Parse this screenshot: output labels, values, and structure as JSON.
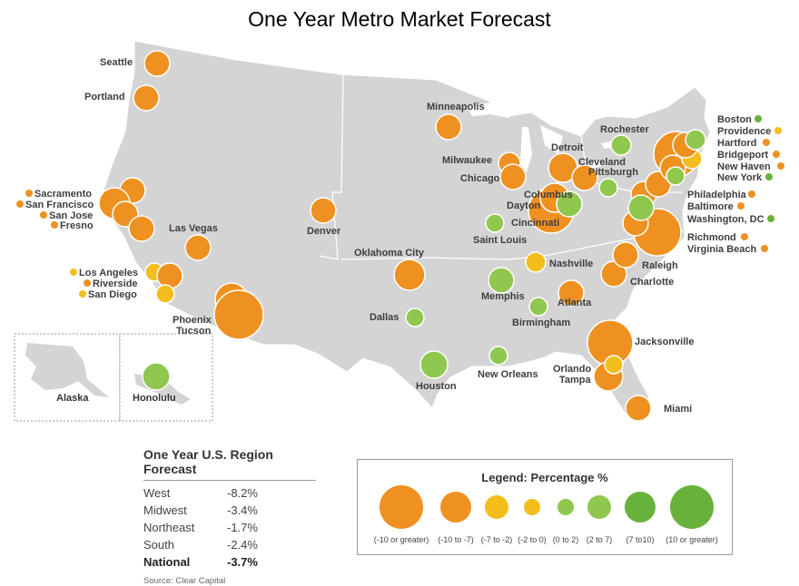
{
  "title": "One Year Metro Market Forecast",
  "colors": {
    "land": "#d4d4d4",
    "orange": "#ef9120",
    "yellow": "#f3be1c",
    "light_green": "#8fc74f",
    "green": "#68b23b"
  },
  "insets": {
    "alaska": "Alaska",
    "hawaii": "Honolulu"
  },
  "metros": [
    {
      "name": "Seattle",
      "category": "-10 to -7"
    },
    {
      "name": "Portland",
      "category": "-10 to -7"
    },
    {
      "name": "Sacramento",
      "category": "-10 to -7"
    },
    {
      "name": "San Francisco",
      "category": "-10 or greater"
    },
    {
      "name": "San Jose",
      "category": "-10 to -7"
    },
    {
      "name": "Fresno",
      "category": "-10 to -7"
    },
    {
      "name": "Las Vegas",
      "category": "-10 to -7"
    },
    {
      "name": "Los Angeles",
      "category": "-7 to -2"
    },
    {
      "name": "Riverside",
      "category": "-10 to -7"
    },
    {
      "name": "San Diego",
      "category": "-7 to -2"
    },
    {
      "name": "Phoenix",
      "category": "-10 or greater"
    },
    {
      "name": "Tucson",
      "category": "-10 or greater"
    },
    {
      "name": "Denver",
      "category": "-10 to -7"
    },
    {
      "name": "Minneapolis",
      "category": "-10 to -7"
    },
    {
      "name": "Oklahoma City",
      "category": "-10 to -7"
    },
    {
      "name": "Dallas",
      "category": "0 to 2"
    },
    {
      "name": "Houston",
      "category": "2 to 7"
    },
    {
      "name": "Milwaukee",
      "category": "-10 to -7"
    },
    {
      "name": "Chicago",
      "category": "-10 to -7"
    },
    {
      "name": "Detroit",
      "category": "-10 to -7"
    },
    {
      "name": "Cleveland",
      "category": "-10 to -7"
    },
    {
      "name": "Columbus",
      "category": "2 to 7"
    },
    {
      "name": "Dayton",
      "category": "-10 or greater"
    },
    {
      "name": "Cincinnati",
      "category": "-10 or greater"
    },
    {
      "name": "Pittsburgh",
      "category": "0 to 2"
    },
    {
      "name": "Saint Louis",
      "category": "0 to 2"
    },
    {
      "name": "Memphis",
      "category": "2 to 7"
    },
    {
      "name": "Nashville",
      "category": "-7 to -2"
    },
    {
      "name": "Birmingham",
      "category": "0 to 2"
    },
    {
      "name": "Atlanta",
      "category": "-10 to -7"
    },
    {
      "name": "New Orleans",
      "category": "0 to 2"
    },
    {
      "name": "Jacksonville",
      "category": "-10 or greater"
    },
    {
      "name": "Orlando",
      "category": "-7 to -2"
    },
    {
      "name": "Tampa",
      "category": "-10 to -7"
    },
    {
      "name": "Miami",
      "category": "-10 to -7"
    },
    {
      "name": "Charlotte",
      "category": "-10 to -7"
    },
    {
      "name": "Raleigh",
      "category": "-10 to -7"
    },
    {
      "name": "Rochester",
      "category": "0 to 2"
    },
    {
      "name": "Boston",
      "category": "0 to 2"
    },
    {
      "name": "Providence",
      "category": "-7 to -2"
    },
    {
      "name": "Hartford",
      "category": "-10 to -7"
    },
    {
      "name": "Bridgeport",
      "category": "-10 to -7"
    },
    {
      "name": "New Haven",
      "category": "-10 to -7"
    },
    {
      "name": "New York",
      "category": "0 to 2"
    },
    {
      "name": "Philadelphia",
      "category": "-10 to -7"
    },
    {
      "name": "Baltimore",
      "category": "-10 to -7"
    },
    {
      "name": "Washington, DC",
      "category": "2 to 7"
    },
    {
      "name": "Richmond",
      "category": "-10 to -7"
    },
    {
      "name": "Virginia Beach",
      "category": "-10 or greater"
    },
    {
      "name": "Honolulu",
      "category": "2 to 7"
    }
  ],
  "region_forecast": {
    "title": "One Year U.S. Region Forecast",
    "rows": [
      {
        "region": "West",
        "value": "-8.2%"
      },
      {
        "region": "Midwest",
        "value": "-3.4%"
      },
      {
        "region": "Northeast",
        "value": "-1.7%"
      },
      {
        "region": "South",
        "value": "-2.4%"
      },
      {
        "region": "National",
        "value": "-3.7%"
      }
    ],
    "source": "Source: Clear Capital"
  },
  "legend": {
    "title": "Legend: Percentage %",
    "items": [
      {
        "label": "(-10 or greater)",
        "color": "#ef9120"
      },
      {
        "label": "(-10 to -7)",
        "color": "#ef9120"
      },
      {
        "label": "(-7 to -2)",
        "color": "#f3be1c"
      },
      {
        "label": "(-2 to 0)",
        "color": "#f3be1c"
      },
      {
        "label": "(0 to 2)",
        "color": "#8fc74f"
      },
      {
        "label": "(2 to 7)",
        "color": "#8fc74f"
      },
      {
        "label": "(7 to10)",
        "color": "#68b23b"
      },
      {
        "label": "(10 or greater)",
        "color": "#68b23b"
      }
    ]
  }
}
